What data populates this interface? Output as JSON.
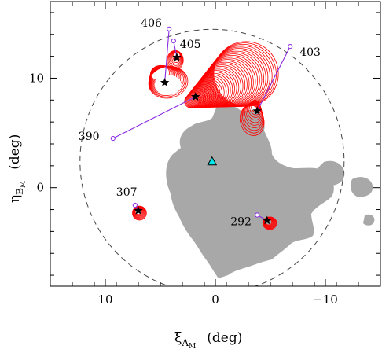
{
  "chart_data": {
    "type": "scatter",
    "xlabel_symbol": "ξ",
    "xlabel_sub": "Λ",
    "xlabel_subsub": "M",
    "xlabel_unit": "(deg)",
    "ylabel_symbol": "η",
    "ylabel_sub": "B",
    "ylabel_subsub": "M",
    "ylabel_unit": "(deg)",
    "xlim": [
      15,
      -15
    ],
    "ylim": [
      -9,
      17
    ],
    "x_ticks": [
      10,
      0,
      -10
    ],
    "x_tick_labels": [
      "10",
      "0",
      "−10"
    ],
    "y_ticks": [
      0,
      10
    ],
    "y_tick_labels": [
      "0",
      "10"
    ],
    "grid": false,
    "colors": {
      "footprint": "#a8a8a8",
      "orbit": "#ff0000",
      "vector": "#8a2be2",
      "center_marker": "#00e5e5"
    },
    "center_marker": {
      "shape": "triangle",
      "x": 0.3,
      "y": 2.4
    },
    "circle_radius_deg": 12,
    "objects": [
      {
        "label": "406",
        "star": [
          4.6,
          9.6
        ],
        "open": [
          4.2,
          14.5
        ]
      },
      {
        "label": "405",
        "star": [
          3.5,
          11.9
        ],
        "open": [
          3.8,
          13.4
        ]
      },
      {
        "label": "403",
        "star": [
          -3.8,
          7.0
        ],
        "open": [
          -6.8,
          12.9
        ]
      },
      {
        "label": "390",
        "star": [
          1.8,
          8.3
        ],
        "open": [
          9.3,
          4.5
        ]
      },
      {
        "label": "307",
        "star": [
          7.0,
          -2.1
        ],
        "open": [
          7.3,
          -1.6
        ]
      },
      {
        "label": "292",
        "star": [
          -4.7,
          -3.0
        ],
        "open": [
          -3.8,
          -2.5
        ]
      }
    ]
  }
}
